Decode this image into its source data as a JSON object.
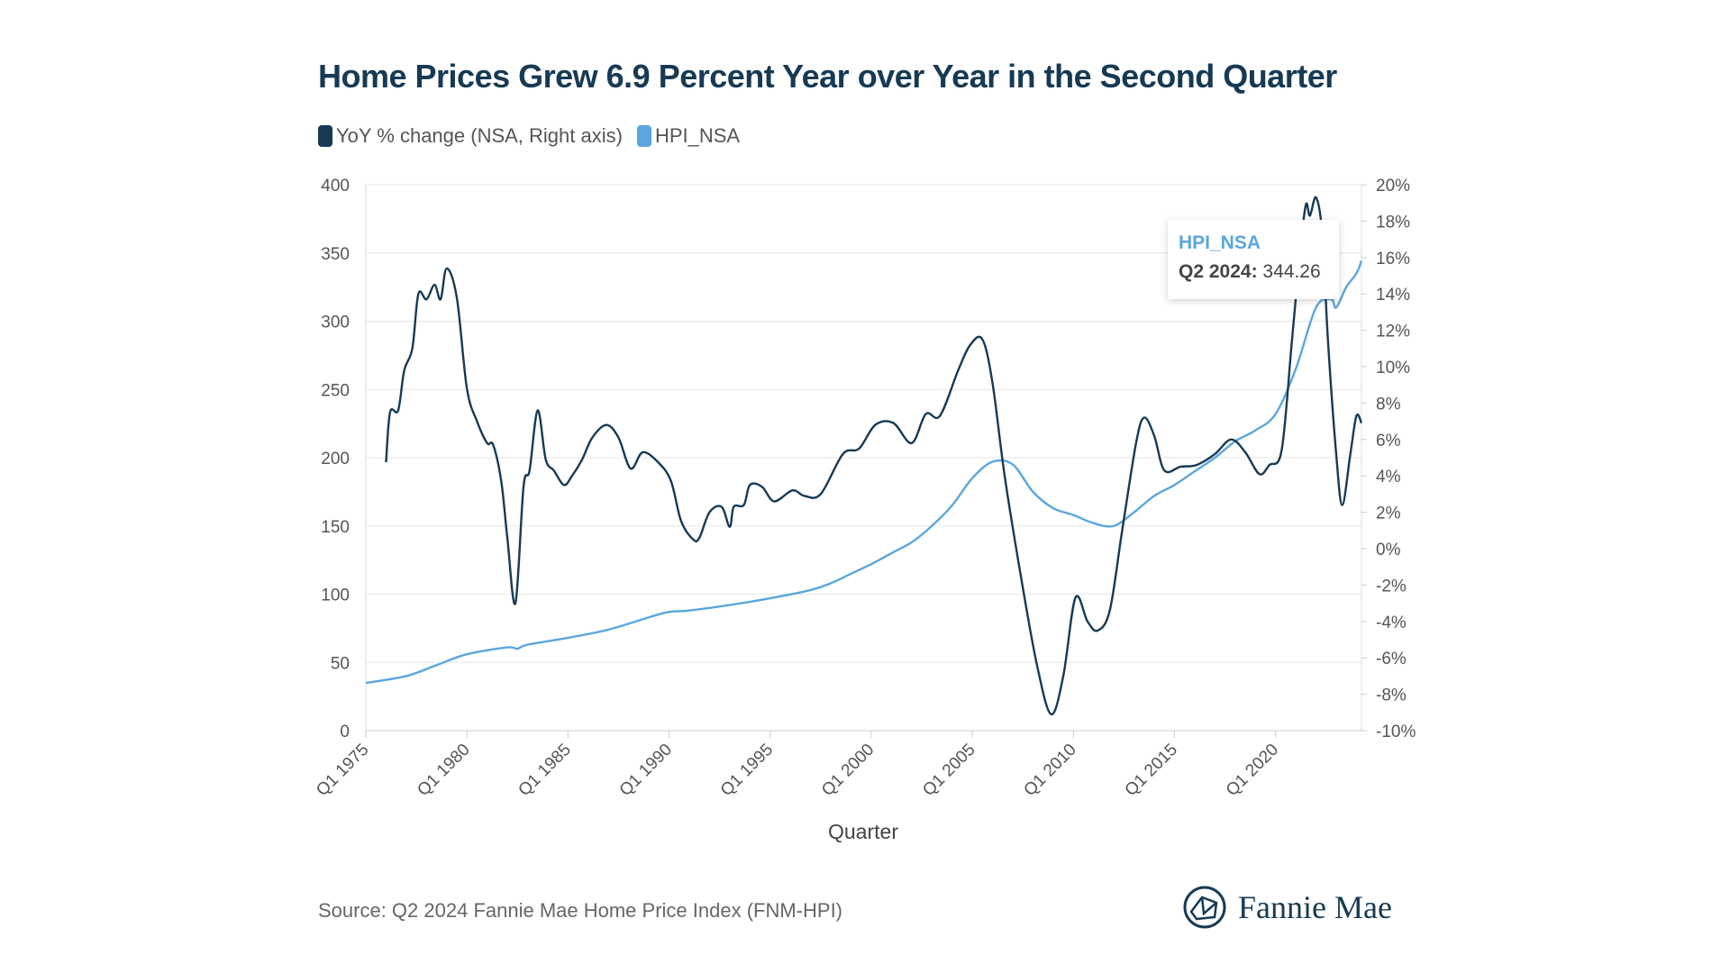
{
  "chart_data": {
    "type": "line",
    "title": "Home Prices Grew 6.9 Percent Year over Year in the Second Quarter",
    "xlabel": "Quarter",
    "x_tick_labels": [
      "Q1 1975",
      "Q1 1980",
      "Q1 1985",
      "Q1 1990",
      "Q1 1995",
      "Q1 2000",
      "Q1 2005",
      "Q1 2010",
      "Q1 2015",
      "Q1 2020"
    ],
    "x_ticks": [
      1975,
      1980,
      1985,
      1990,
      1995,
      2000,
      2005,
      2010,
      2015,
      2020
    ],
    "xlim": [
      1975,
      2024.25
    ],
    "left_axis": {
      "ylim": [
        0,
        400
      ],
      "ticks": [
        "0",
        "50",
        "100",
        "150",
        "200",
        "250",
        "300",
        "350",
        "400"
      ]
    },
    "right_axis": {
      "ylim": [
        -10,
        20
      ],
      "ticks": [
        "-10%",
        "-8%",
        "-6%",
        "-4%",
        "-2%",
        "0%",
        "2%",
        "4%",
        "6%",
        "8%",
        "10%",
        "12%",
        "14%",
        "16%",
        "18%",
        "20%"
      ]
    },
    "grid": true,
    "legend_position": "top-left",
    "series": [
      {
        "name": "YoY % change (NSA, Right axis)",
        "axis": "right",
        "color": "#173a54",
        "points": [
          [
            1976.0,
            4.75
          ],
          [
            1976.2,
            7.5
          ],
          [
            1976.6,
            7.6
          ],
          [
            1976.9,
            9.8
          ],
          [
            1977.3,
            11
          ],
          [
            1977.6,
            14
          ],
          [
            1978.0,
            13.7
          ],
          [
            1978.4,
            14.5
          ],
          [
            1978.7,
            13.7
          ],
          [
            1979.0,
            15.4
          ],
          [
            1979.5,
            13.8
          ],
          [
            1980.0,
            8.8
          ],
          [
            1980.5,
            7
          ],
          [
            1981.0,
            5.8
          ],
          [
            1981.3,
            5.7
          ],
          [
            1981.7,
            3.7
          ],
          [
            1982.0,
            0.6
          ],
          [
            1982.4,
            -3
          ],
          [
            1982.8,
            3.4
          ],
          [
            1983.1,
            4.3
          ],
          [
            1983.5,
            7.6
          ],
          [
            1983.9,
            4.9
          ],
          [
            1984.3,
            4.3
          ],
          [
            1984.8,
            3.5
          ],
          [
            1985.2,
            4
          ],
          [
            1985.7,
            4.9
          ],
          [
            1986.2,
            6.1
          ],
          [
            1986.9,
            6.8
          ],
          [
            1987.5,
            6.1
          ],
          [
            1988.1,
            4.4
          ],
          [
            1988.7,
            5.3
          ],
          [
            1989.5,
            4.7
          ],
          [
            1990.1,
            3.7
          ],
          [
            1990.6,
            1.5
          ],
          [
            1991.2,
            0.5
          ],
          [
            1991.5,
            0.6
          ],
          [
            1992.0,
            2
          ],
          [
            1992.6,
            2.3
          ],
          [
            1993.0,
            1.2
          ],
          [
            1993.2,
            2.3
          ],
          [
            1993.7,
            2.4
          ],
          [
            1994.0,
            3.5
          ],
          [
            1994.6,
            3.4
          ],
          [
            1995.2,
            2.6
          ],
          [
            1996.1,
            3.2
          ],
          [
            1996.7,
            2.9
          ],
          [
            1997.5,
            3
          ],
          [
            1998.6,
            5.2
          ],
          [
            1999.4,
            5.5
          ],
          [
            2000.2,
            6.8
          ],
          [
            2001.1,
            6.9
          ],
          [
            2002.0,
            5.8
          ],
          [
            2002.7,
            7.4
          ],
          [
            2003.4,
            7.3
          ],
          [
            2004.3,
            9.8
          ],
          [
            2004.9,
            11.2
          ],
          [
            2005.5,
            11.5
          ],
          [
            2006.0,
            9.1
          ],
          [
            2006.6,
            4
          ],
          [
            2007.4,
            -1.5
          ],
          [
            2008.2,
            -6.4
          ],
          [
            2008.9,
            -9.1
          ],
          [
            2009.5,
            -7
          ],
          [
            2010.1,
            -2.7
          ],
          [
            2010.7,
            -4
          ],
          [
            2011.2,
            -4.5
          ],
          [
            2011.8,
            -3.4
          ],
          [
            2012.4,
            0.9
          ],
          [
            2013.1,
            5.8
          ],
          [
            2013.5,
            7.2
          ],
          [
            2014.0,
            6.2
          ],
          [
            2014.5,
            4.3
          ],
          [
            2015.3,
            4.5
          ],
          [
            2016.1,
            4.6
          ],
          [
            2017.0,
            5.2
          ],
          [
            2017.8,
            6
          ],
          [
            2018.5,
            5.3
          ],
          [
            2019.2,
            4.1
          ],
          [
            2019.7,
            4.6
          ],
          [
            2020.3,
            5.4
          ],
          [
            2020.8,
            11.3
          ],
          [
            2021.2,
            16.2
          ],
          [
            2021.5,
            18.9
          ],
          [
            2021.7,
            18.3
          ],
          [
            2022.0,
            19.3
          ],
          [
            2022.3,
            17.4
          ],
          [
            2022.6,
            11.3
          ],
          [
            2023.0,
            5.2
          ],
          [
            2023.3,
            2.4
          ],
          [
            2023.7,
            5.2
          ],
          [
            2024.0,
            7.3
          ],
          [
            2024.25,
            6.9
          ]
        ]
      },
      {
        "name": "HPI_NSA",
        "axis": "left",
        "color": "#5aa6de",
        "points": [
          [
            1975.0,
            35
          ],
          [
            1977.0,
            40
          ],
          [
            1978.5,
            48
          ],
          [
            1980.0,
            56
          ],
          [
            1982.0,
            61
          ],
          [
            1982.5,
            60
          ],
          [
            1983.0,
            63
          ],
          [
            1985.0,
            68
          ],
          [
            1987.0,
            74
          ],
          [
            1989.0,
            83
          ],
          [
            1990.0,
            87
          ],
          [
            1991.0,
            88
          ],
          [
            1993.0,
            92
          ],
          [
            1995.0,
            97
          ],
          [
            1997.0,
            103
          ],
          [
            1998.0,
            108
          ],
          [
            1999.0,
            115
          ],
          [
            2000.0,
            122
          ],
          [
            2001.0,
            130
          ],
          [
            2002.0,
            138
          ],
          [
            2003.0,
            150
          ],
          [
            2004.0,
            165
          ],
          [
            2005.0,
            185
          ],
          [
            2006.0,
            197
          ],
          [
            2007.0,
            195
          ],
          [
            2008.0,
            175
          ],
          [
            2009.0,
            163
          ],
          [
            2010.0,
            158
          ],
          [
            2011.0,
            152
          ],
          [
            2012.0,
            150
          ],
          [
            2013.0,
            160
          ],
          [
            2014.0,
            172
          ],
          [
            2015.0,
            180
          ],
          [
            2016.0,
            190
          ],
          [
            2017.0,
            200
          ],
          [
            2018.0,
            212
          ],
          [
            2019.0,
            220
          ],
          [
            2020.0,
            232
          ],
          [
            2021.0,
            265
          ],
          [
            2022.0,
            310
          ],
          [
            2022.75,
            316
          ],
          [
            2023.0,
            310
          ],
          [
            2023.5,
            325
          ],
          [
            2024.0,
            335
          ],
          [
            2024.25,
            344.26
          ]
        ]
      }
    ],
    "tooltip": {
      "series": "HPI_NSA",
      "label": "Q2 2024:",
      "value": "344.26"
    }
  },
  "legend": [
    {
      "label": "YoY % change (NSA, Right axis)",
      "color": "#173a54"
    },
    {
      "label": "HPI_NSA",
      "color": "#5aa6de"
    }
  ],
  "footer": {
    "source": "Source: Q2 2024 Fannie Mae Home Price Index (FNM-HPI)",
    "logo": "Fannie Mae"
  }
}
